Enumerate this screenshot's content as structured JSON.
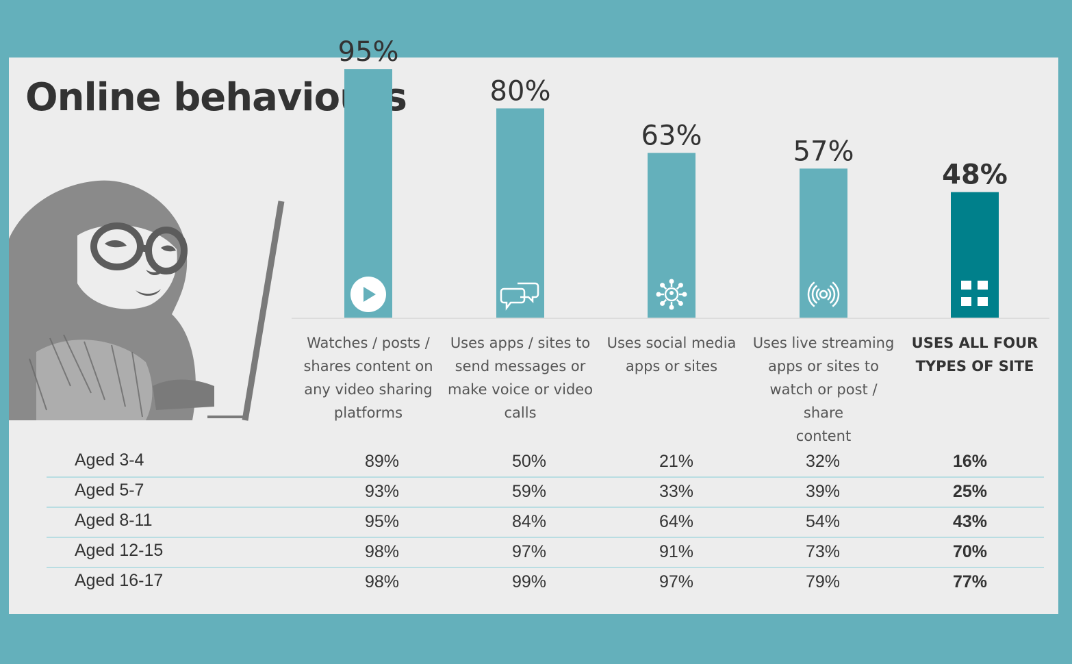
{
  "title": "Online behaviours",
  "colors": {
    "bar": "#64b0bb",
    "highlight_bar": "#00808b",
    "background": "#64b0bb",
    "card": "#ededed"
  },
  "chart_data": {
    "type": "bar",
    "categories": [
      "Watches / posts / shares content on any video sharing platforms",
      "Uses apps / sites to send messages or make voice or video calls",
      "Uses social media apps or sites",
      "Uses live streaming apps or sites to watch or post / share content",
      "USES ALL FOUR TYPES OF SITE"
    ],
    "category_lines": [
      [
        "Watches / posts /",
        "shares content on",
        "any video sharing",
        "platforms"
      ],
      [
        "Uses apps / sites to",
        "send messages or",
        "make voice or video",
        "calls"
      ],
      [
        "Uses social media",
        "apps or sites"
      ],
      [
        "Uses live streaming",
        "apps or sites to",
        "watch or post / share",
        "content"
      ],
      [
        "USES ALL FOUR",
        "TYPES OF SITE"
      ]
    ],
    "values": [
      95,
      80,
      63,
      57,
      48
    ],
    "value_labels": [
      "95%",
      "80%",
      "63%",
      "57%",
      "48%"
    ],
    "icons": [
      "play-icon",
      "chat-bubbles-icon",
      "network-icon",
      "broadcast-icon",
      "grid-icon"
    ],
    "highlight_index": 4,
    "ylim": [
      0,
      100
    ]
  },
  "table": {
    "rows": [
      {
        "label": "Aged 3-4",
        "values": [
          "89%",
          "50%",
          "21%",
          "32%",
          "16%"
        ]
      },
      {
        "label": "Aged 5-7",
        "values": [
          "93%",
          "59%",
          "33%",
          "39%",
          "25%"
        ]
      },
      {
        "label": "Aged 8-11",
        "values": [
          "95%",
          "84%",
          "64%",
          "54%",
          "43%"
        ]
      },
      {
        "label": "Aged 12-15",
        "values": [
          "98%",
          "97%",
          "91%",
          "73%",
          "70%"
        ]
      },
      {
        "label": "Aged 16-17",
        "values": [
          "98%",
          "99%",
          "97%",
          "79%",
          "77%"
        ]
      }
    ]
  }
}
